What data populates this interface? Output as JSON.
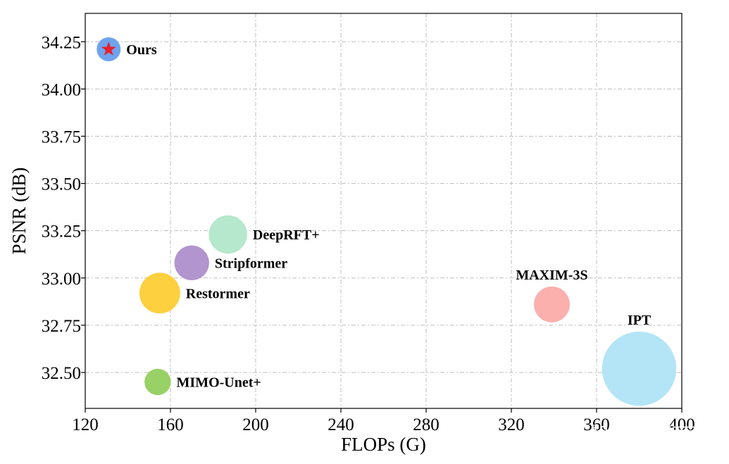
{
  "chart_data": {
    "type": "scatter",
    "xlabel": "FLOPs (G)",
    "ylabel": "PSNR (dB)",
    "xlim": [
      120,
      400
    ],
    "ylim": [
      32.31,
      34.4
    ],
    "xticks": [
      120,
      160,
      200,
      240,
      280,
      320,
      360,
      400
    ],
    "yticks": [
      32.5,
      32.75,
      33.0,
      33.25,
      33.5,
      33.75,
      34.0,
      34.25
    ],
    "ytick_labels": [
      "32.50",
      "32.75",
      "33.00",
      "33.25",
      "33.50",
      "33.75",
      "34.00",
      "34.25"
    ],
    "grid": true,
    "points": [
      {
        "name": "Ours",
        "x": 131,
        "y": 34.21,
        "size": 1,
        "color": "#6fa3ee",
        "marker": "star",
        "marker_color": "#e8202a",
        "label_pos": "right"
      },
      {
        "name": "DeepRFT+",
        "x": 187,
        "y": 33.23,
        "size": 1.6,
        "color": "#b5e8cc",
        "label_pos": "right"
      },
      {
        "name": "Stripformer",
        "x": 170,
        "y": 33.08,
        "size": 1.45,
        "color": "#b294cf",
        "label_pos": "right"
      },
      {
        "name": "Restormer",
        "x": 155,
        "y": 32.92,
        "size": 1.7,
        "color": "#fcd03f",
        "label_pos": "right"
      },
      {
        "name": "MIMO-Unet+",
        "x": 154,
        "y": 32.45,
        "size": 1.1,
        "color": "#98d165",
        "label_pos": "right"
      },
      {
        "name": "MAXIM-3S",
        "x": 339,
        "y": 32.86,
        "size": 1.5,
        "color": "#fbb0ae",
        "label_pos": "top"
      },
      {
        "name": "IPT",
        "x": 380,
        "y": 32.52,
        "size": 3.1,
        "color": "#b3e5f7",
        "label_pos": "top"
      }
    ]
  },
  "watermark": "知乎 @团南南"
}
